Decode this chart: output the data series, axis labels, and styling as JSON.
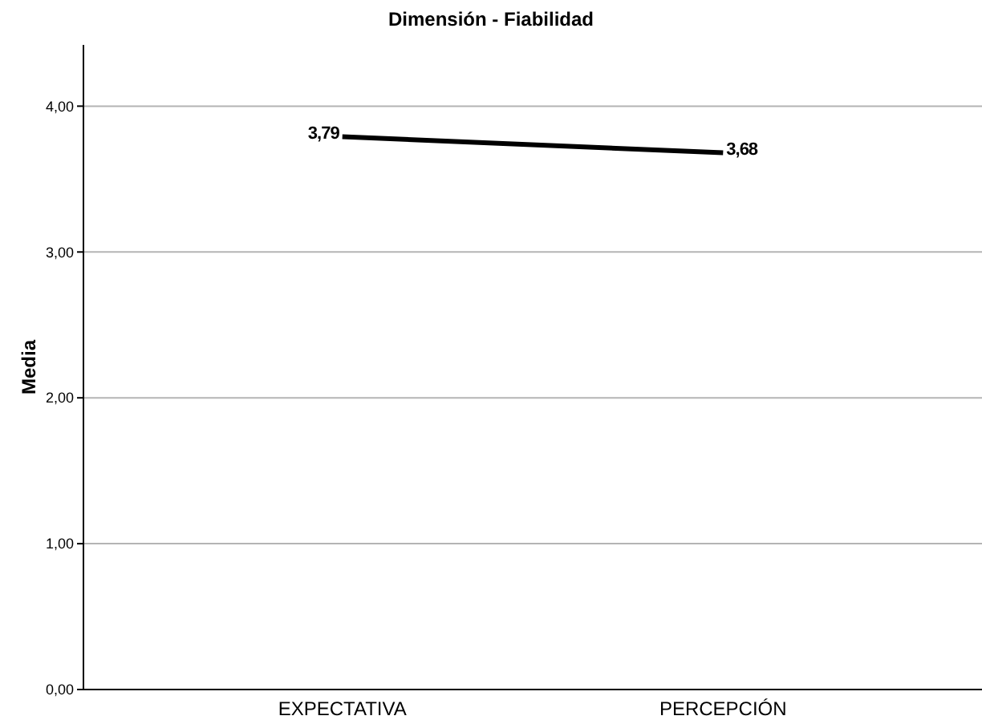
{
  "chart_data": {
    "type": "line",
    "title": "Dimensión - Fiabilidad",
    "ylabel": "Media",
    "categories": [
      "EXPECTATIVA",
      "PERCEPCIÓN"
    ],
    "series": [
      {
        "color": "#000000",
        "values": [
          3.79,
          3.68
        ],
        "value_labels": [
          "3,79",
          "3,68"
        ]
      }
    ],
    "ylim": [
      0,
      4.42
    ],
    "yticks": [
      {
        "value": 0,
        "label": "0,00"
      },
      {
        "value": 1,
        "label": "1,00"
      },
      {
        "value": 2,
        "label": "2,00"
      },
      {
        "value": 3,
        "label": "3,00"
      },
      {
        "value": 4,
        "label": "4,00"
      }
    ],
    "grid": "y",
    "marker": "none",
    "line_style": "solid"
  }
}
